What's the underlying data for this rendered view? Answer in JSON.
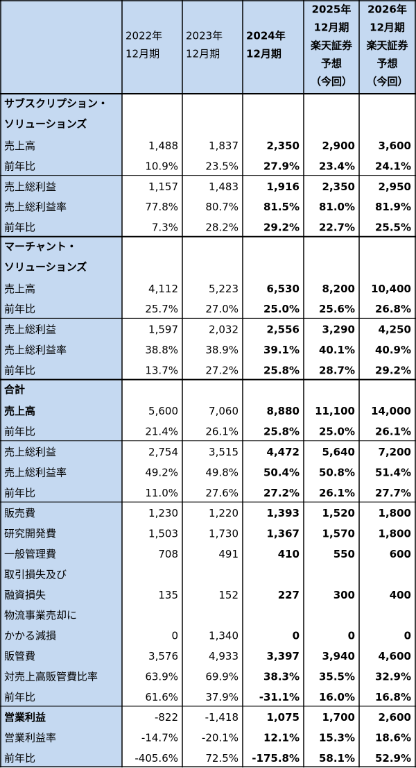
{
  "table": {
    "columns": [
      [
        "2022年",
        "12月期"
      ],
      [
        "2023年",
        "12月期"
      ],
      [
        "2024年",
        "12月期"
      ],
      [
        "2025年",
        "12月期",
        "楽天証券",
        "予想",
        "（今回）"
      ],
      [
        "2026年",
        "12月期",
        "楽天証券",
        "予想",
        "（今回）"
      ]
    ],
    "bold_columns": [
      2,
      3,
      4
    ],
    "label_color": "#c5d9f1",
    "sections": [
      {
        "title": [
          "サブスクリプション・",
          "ソリューションズ"
        ],
        "blocks": [
          [
            {
              "label": [
                "売上高"
              ],
              "values": [
                "1,488",
                "1,837",
                "2,350",
                "2,900",
                "3,600"
              ]
            },
            {
              "label": [
                "前年比"
              ],
              "values": [
                "10.9%",
                "23.5%",
                "27.9%",
                "23.4%",
                "24.1%"
              ]
            }
          ],
          [
            {
              "label": [
                "売上総利益"
              ],
              "values": [
                "1,157",
                "1,483",
                "1,916",
                "2,350",
                "2,950"
              ]
            },
            {
              "label": [
                "売上総利益率"
              ],
              "values": [
                "77.8%",
                "80.7%",
                "81.5%",
                "81.0%",
                "81.9%"
              ]
            },
            {
              "label": [
                "前年比"
              ],
              "values": [
                "7.3%",
                "28.2%",
                "29.2%",
                "22.7%",
                "25.5%"
              ]
            }
          ]
        ]
      },
      {
        "title": [
          "マーチャント・",
          "ソリューションズ"
        ],
        "blocks": [
          [
            {
              "label": [
                "売上高"
              ],
              "values": [
                "4,112",
                "5,223",
                "6,530",
                "8,200",
                "10,400"
              ]
            },
            {
              "label": [
                "前年比"
              ],
              "values": [
                "25.7%",
                "27.0%",
                "25.0%",
                "25.6%",
                "26.8%"
              ]
            }
          ],
          [
            {
              "label": [
                "売上総利益"
              ],
              "values": [
                "1,597",
                "2,032",
                "2,556",
                "3,290",
                "4,250"
              ]
            },
            {
              "label": [
                "売上総利益率"
              ],
              "values": [
                "38.8%",
                "38.9%",
                "39.1%",
                "40.1%",
                "40.9%"
              ]
            },
            {
              "label": [
                "前年比"
              ],
              "values": [
                "13.7%",
                "27.2%",
                "25.8%",
                "28.7%",
                "29.2%"
              ]
            }
          ]
        ]
      },
      {
        "title": [
          "合計"
        ],
        "blocks": [
          [
            {
              "label": [
                "売上高"
              ],
              "bold_label": true,
              "values": [
                "5,600",
                "7,060",
                "8,880",
                "11,100",
                "14,000"
              ]
            },
            {
              "label": [
                "前年比"
              ],
              "values": [
                "21.4%",
                "26.1%",
                "25.8%",
                "25.0%",
                "26.1%"
              ]
            }
          ],
          [
            {
              "label": [
                "売上総利益"
              ],
              "values": [
                "2,754",
                "3,515",
                "4,472",
                "5,640",
                "7,200"
              ]
            },
            {
              "label": [
                "売上総利益率"
              ],
              "values": [
                "49.2%",
                "49.8%",
                "50.4%",
                "50.8%",
                "51.4%"
              ]
            },
            {
              "label": [
                "前年比"
              ],
              "values": [
                "11.0%",
                "27.6%",
                "27.2%",
                "26.1%",
                "27.7%"
              ]
            }
          ],
          [
            {
              "label": [
                "販売費"
              ],
              "values": [
                "1,230",
                "1,220",
                "1,393",
                "1,520",
                "1,800"
              ]
            },
            {
              "label": [
                "研究開発費"
              ],
              "values": [
                "1,503",
                "1,730",
                "1,367",
                "1,570",
                "1,800"
              ]
            },
            {
              "label": [
                "一般管理費"
              ],
              "values": [
                "708",
                "491",
                "410",
                "550",
                "600"
              ]
            },
            {
              "label": [
                "取引損失及び",
                "融資損失"
              ],
              "values": [
                "135",
                "152",
                "227",
                "300",
                "400"
              ]
            },
            {
              "label": [
                "物流事業売却に",
                "かかる減損"
              ],
              "values": [
                "0",
                "1,340",
                "0",
                "0",
                "0"
              ]
            },
            {
              "label": [
                "販管費"
              ],
              "values": [
                "3,576",
                "4,933",
                "3,397",
                "3,940",
                "4,600"
              ]
            },
            {
              "label": [
                "対売上高販管費比率"
              ],
              "values": [
                "63.9%",
                "69.9%",
                "38.3%",
                "35.5%",
                "32.9%"
              ]
            },
            {
              "label": [
                "前年比"
              ],
              "values": [
                "61.6%",
                "37.9%",
                "-31.1%",
                "16.0%",
                "16.8%"
              ]
            }
          ],
          [
            {
              "label": [
                "営業利益"
              ],
              "bold_label": true,
              "values": [
                "-822",
                "-1,418",
                "1,075",
                "1,700",
                "2,600"
              ],
              "colors": [
                "#e8321e",
                "#e8321e",
                "#000000",
                "#000000",
                "#000000"
              ]
            },
            {
              "label": [
                "営業利益率"
              ],
              "values": [
                "-14.7%",
                "-20.1%",
                "12.1%",
                "15.3%",
                "18.6%"
              ]
            },
            {
              "label": [
                "前年比"
              ],
              "values": [
                "-405.6%",
                "72.5%",
                "-175.8%",
                "58.1%",
                "52.9%"
              ]
            }
          ]
        ]
      }
    ]
  }
}
